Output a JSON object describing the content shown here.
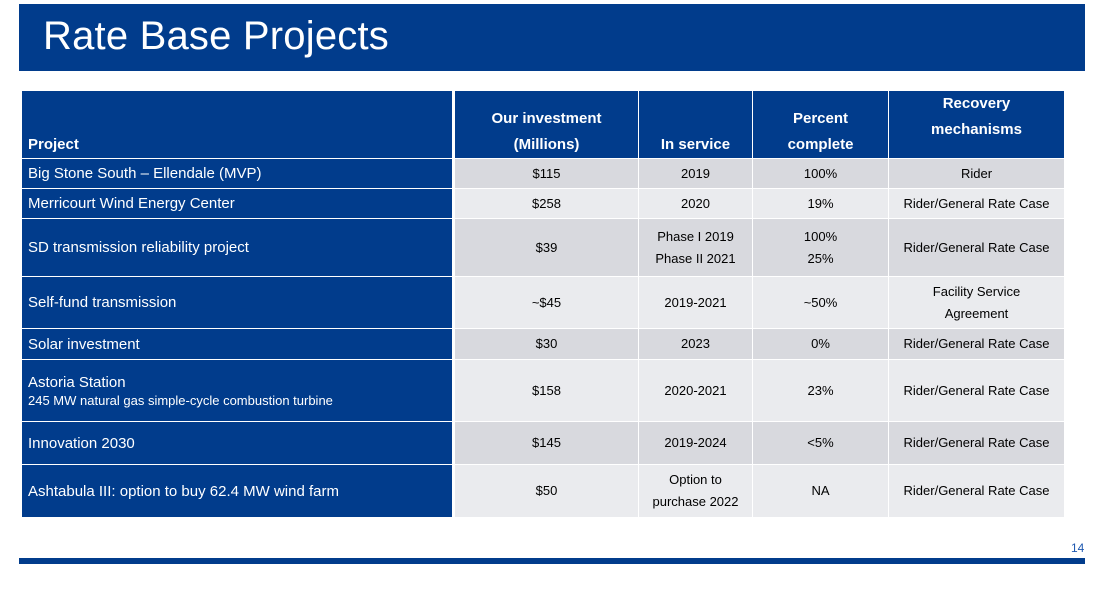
{
  "title": "Rate Base Projects",
  "table": {
    "headers": {
      "project": "Project",
      "investment": [
        "Our investment",
        "(Millions)"
      ],
      "in_service": "In service",
      "percent": [
        "Percent",
        "complete"
      ],
      "recovery": [
        "Recovery",
        "mechanisms"
      ]
    },
    "rows": [
      {
        "project": "Big Stone South – Ellendale (MVP)",
        "project_sub": "",
        "investment": "$115",
        "in_service": [
          "2019"
        ],
        "percent": [
          "100%"
        ],
        "recovery": [
          "Rider"
        ]
      },
      {
        "project": "Merricourt Wind Energy Center",
        "project_sub": "",
        "investment": "$258",
        "in_service": [
          "2020"
        ],
        "percent": [
          "19%"
        ],
        "recovery": [
          "Rider/General Rate Case"
        ]
      },
      {
        "project": "SD transmission reliability project",
        "project_sub": "",
        "investment": "$39",
        "in_service": [
          "Phase I 2019",
          "Phase II 2021"
        ],
        "percent": [
          "100%",
          "25%"
        ],
        "recovery": [
          "Rider/General Rate Case"
        ]
      },
      {
        "project": "Self-fund transmission",
        "project_sub": "",
        "investment": "~$45",
        "in_service": [
          "2019-2021"
        ],
        "percent": [
          "~50%"
        ],
        "recovery": [
          "Facility Service",
          "Agreement"
        ]
      },
      {
        "project": "Solar investment",
        "project_sub": "",
        "investment": "$30",
        "in_service": [
          "2023"
        ],
        "percent": [
          "0%"
        ],
        "recovery": [
          "Rider/General Rate Case"
        ]
      },
      {
        "project": "Astoria Station",
        "project_sub": "245 MW natural gas simple-cycle combustion turbine",
        "investment": "$158",
        "in_service": [
          "2020-2021"
        ],
        "percent": [
          "23%"
        ],
        "recovery": [
          "Rider/General Rate Case"
        ]
      },
      {
        "project": "Innovation 2030",
        "project_sub": "",
        "investment": "$145",
        "in_service": [
          "2019-2024"
        ],
        "percent": [
          "<5%"
        ],
        "recovery": [
          "Rider/General Rate Case"
        ]
      },
      {
        "project": "Ashtabula III: option to buy 62.4 MW wind farm",
        "project_sub": "",
        "investment": "$50",
        "in_service": [
          "Option to",
          "purchase 2022"
        ],
        "percent": [
          "NA"
        ],
        "recovery": [
          "Rider/General Rate Case"
        ]
      }
    ]
  },
  "page_number": "14",
  "colors": {
    "primary": "#013c8c",
    "row_dark": "#d8d9de",
    "row_light": "#eaebee"
  }
}
